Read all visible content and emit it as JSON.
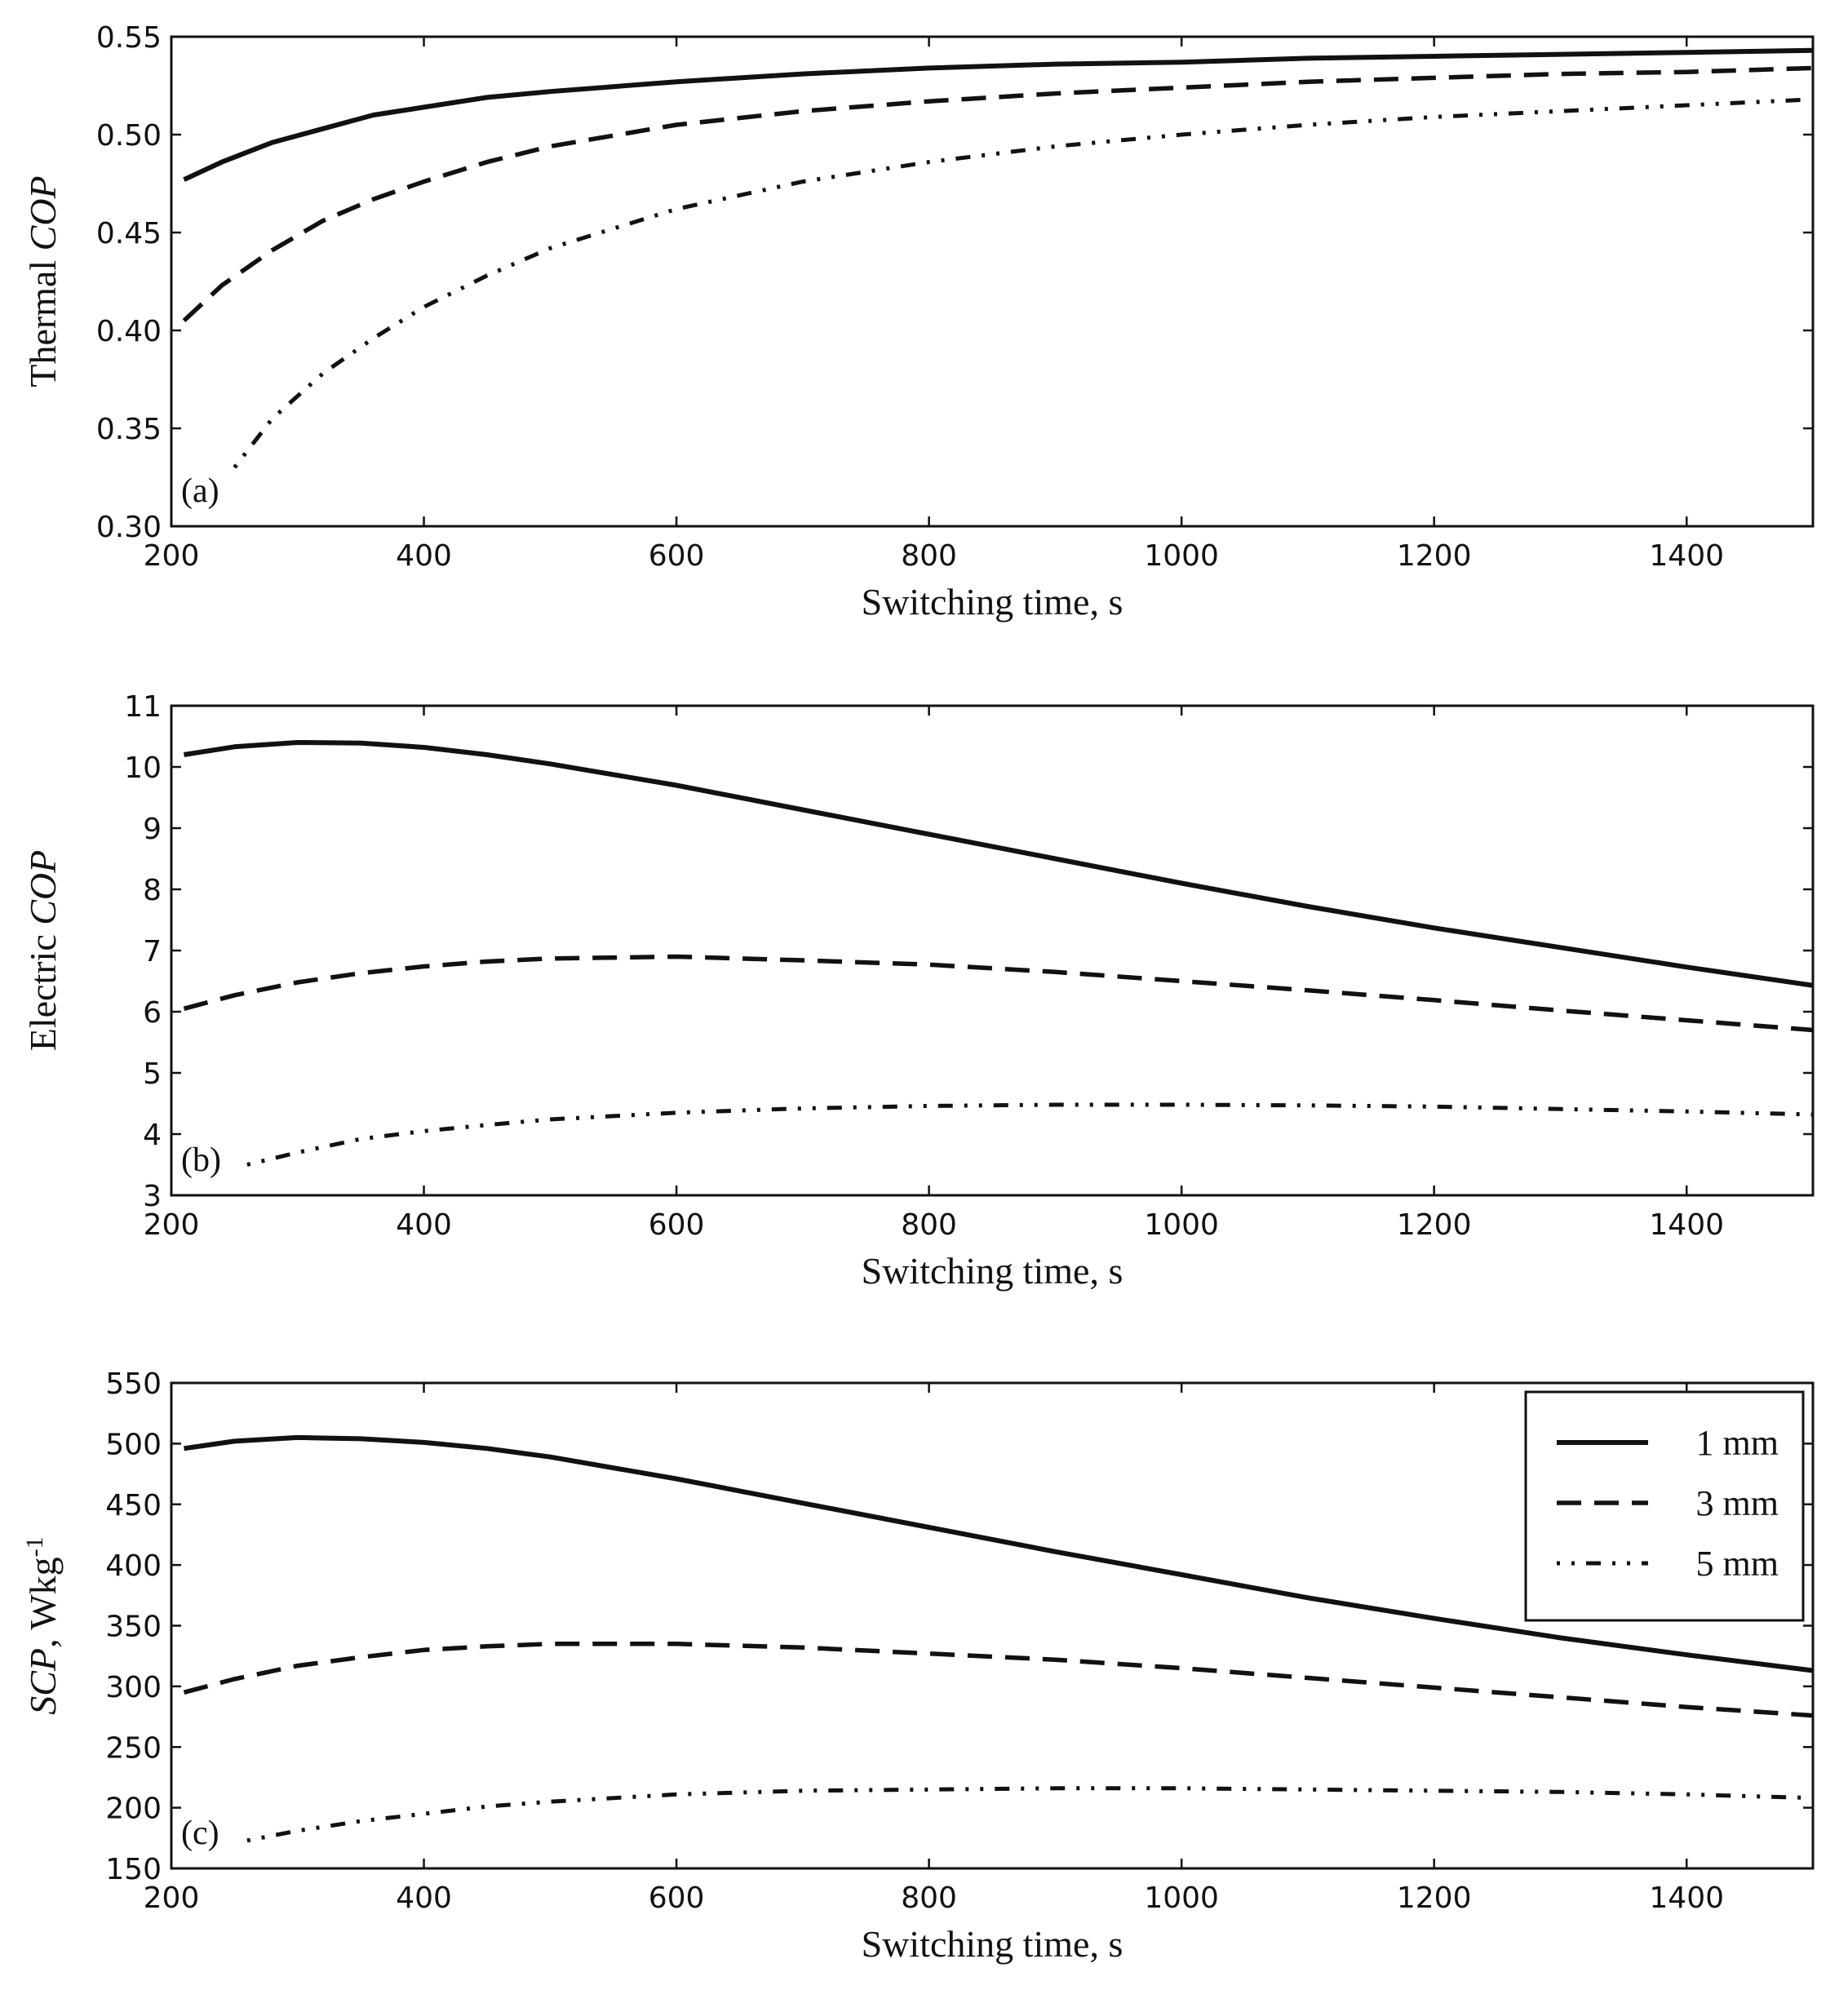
{
  "chart_data": [
    {
      "type": "line",
      "panel_label": "(a)",
      "xlabel": "Switching time, s",
      "ylabel_parts": [
        "Thermal ",
        "COP"
      ],
      "ylabel_italic": [
        false,
        true
      ],
      "xlim": [
        200,
        1500
      ],
      "ylim": [
        0.3,
        0.55
      ],
      "xticks": [
        200,
        400,
        600,
        800,
        1000,
        1200,
        1400
      ],
      "yticks": [
        0.3,
        0.35,
        0.4,
        0.45,
        0.5,
        0.55
      ],
      "ytick_decimals": 2,
      "legend": null,
      "series": [
        {
          "name": "1 mm",
          "style": "solid",
          "x": [
            210,
            240,
            280,
            320,
            360,
            400,
            450,
            500,
            600,
            700,
            800,
            900,
            1000,
            1100,
            1200,
            1300,
            1400,
            1500
          ],
          "y": [
            0.477,
            0.486,
            0.496,
            0.503,
            0.51,
            0.514,
            0.519,
            0.522,
            0.527,
            0.531,
            0.534,
            0.536,
            0.537,
            0.539,
            0.54,
            0.541,
            0.542,
            0.543
          ]
        },
        {
          "name": "3 mm",
          "style": "dashed",
          "x": [
            210,
            240,
            280,
            320,
            360,
            400,
            450,
            500,
            600,
            700,
            800,
            900,
            1000,
            1100,
            1200,
            1300,
            1400,
            1500
          ],
          "y": [
            0.405,
            0.423,
            0.441,
            0.456,
            0.467,
            0.476,
            0.486,
            0.494,
            0.505,
            0.512,
            0.517,
            0.521,
            0.524,
            0.527,
            0.529,
            0.531,
            0.532,
            0.534
          ]
        },
        {
          "name": "5 mm",
          "style": "dashdot",
          "x": [
            250,
            280,
            320,
            360,
            400,
            450,
            500,
            600,
            700,
            800,
            900,
            1000,
            1100,
            1200,
            1300,
            1400,
            1500
          ],
          "y": [
            0.33,
            0.355,
            0.378,
            0.396,
            0.412,
            0.428,
            0.442,
            0.462,
            0.476,
            0.486,
            0.494,
            0.5,
            0.505,
            0.509,
            0.512,
            0.515,
            0.518
          ]
        }
      ]
    },
    {
      "type": "line",
      "panel_label": "(b)",
      "xlabel": "Switching time, s",
      "ylabel_parts": [
        "Electric ",
        "COP"
      ],
      "ylabel_italic": [
        false,
        true
      ],
      "xlim": [
        200,
        1500
      ],
      "ylim": [
        3,
        11
      ],
      "xticks": [
        200,
        400,
        600,
        800,
        1000,
        1200,
        1400
      ],
      "yticks": [
        3,
        4,
        5,
        6,
        7,
        8,
        9,
        10,
        11
      ],
      "ytick_decimals": 0,
      "legend": null,
      "series": [
        {
          "name": "1 mm",
          "style": "solid",
          "x": [
            210,
            250,
            300,
            350,
            400,
            450,
            500,
            600,
            700,
            800,
            900,
            1000,
            1100,
            1200,
            1300,
            1400,
            1500
          ],
          "y": [
            10.2,
            10.33,
            10.4,
            10.39,
            10.32,
            10.2,
            10.05,
            9.7,
            9.3,
            8.9,
            8.5,
            8.1,
            7.72,
            7.37,
            7.05,
            6.73,
            6.43
          ]
        },
        {
          "name": "3 mm",
          "style": "dashed",
          "x": [
            210,
            250,
            300,
            350,
            400,
            450,
            500,
            600,
            700,
            800,
            900,
            1000,
            1100,
            1200,
            1300,
            1400,
            1500
          ],
          "y": [
            6.05,
            6.27,
            6.48,
            6.63,
            6.74,
            6.82,
            6.87,
            6.9,
            6.84,
            6.77,
            6.65,
            6.5,
            6.35,
            6.19,
            6.02,
            5.86,
            5.7
          ]
        },
        {
          "name": "5 mm",
          "style": "dashdot",
          "x": [
            260,
            300,
            350,
            400,
            450,
            500,
            600,
            700,
            800,
            900,
            1000,
            1100,
            1200,
            1300,
            1400,
            1500
          ],
          "y": [
            3.5,
            3.7,
            3.92,
            4.05,
            4.15,
            4.24,
            4.35,
            4.42,
            4.46,
            4.48,
            4.48,
            4.47,
            4.45,
            4.41,
            4.37,
            4.32
          ]
        }
      ]
    },
    {
      "type": "line",
      "panel_label": "(c)",
      "xlabel": "Switching time, s",
      "ylabel_parts": [
        "SCP",
        ", Wkg",
        "-1"
      ],
      "ylabel_italic": [
        true,
        false,
        false
      ],
      "xlim": [
        200,
        1500
      ],
      "ylim": [
        150,
        550
      ],
      "xticks": [
        200,
        400,
        600,
        800,
        1000,
        1200,
        1400
      ],
      "yticks": [
        150,
        200,
        250,
        300,
        350,
        400,
        450,
        500,
        550
      ],
      "ytick_decimals": 0,
      "legend": {
        "position": "top-right",
        "entries": [
          "1 mm",
          "3 mm",
          "5 mm"
        ]
      },
      "series": [
        {
          "name": "1 mm",
          "style": "solid",
          "x": [
            210,
            250,
            300,
            350,
            400,
            450,
            500,
            600,
            700,
            800,
            900,
            1000,
            1100,
            1200,
            1300,
            1400,
            1500
          ],
          "y": [
            496,
            502,
            505,
            504,
            501,
            496,
            489,
            471,
            451,
            431,
            411,
            392,
            373,
            356,
            340,
            326,
            313
          ]
        },
        {
          "name": "3 mm",
          "style": "dashed",
          "x": [
            210,
            250,
            300,
            350,
            400,
            450,
            500,
            600,
            700,
            800,
            900,
            1000,
            1100,
            1200,
            1300,
            1400,
            1500
          ],
          "y": [
            295,
            306,
            317,
            324,
            330,
            333,
            335,
            335,
            332,
            327,
            322,
            315,
            307,
            299,
            291,
            283,
            276
          ]
        },
        {
          "name": "5 mm",
          "style": "dashdot",
          "x": [
            260,
            300,
            350,
            400,
            450,
            500,
            600,
            700,
            800,
            900,
            1000,
            1100,
            1200,
            1300,
            1400,
            1500
          ],
          "y": [
            173,
            181,
            189,
            195,
            201,
            205,
            211,
            214,
            215,
            216,
            216,
            215,
            214,
            213,
            211,
            208
          ]
        }
      ]
    }
  ]
}
